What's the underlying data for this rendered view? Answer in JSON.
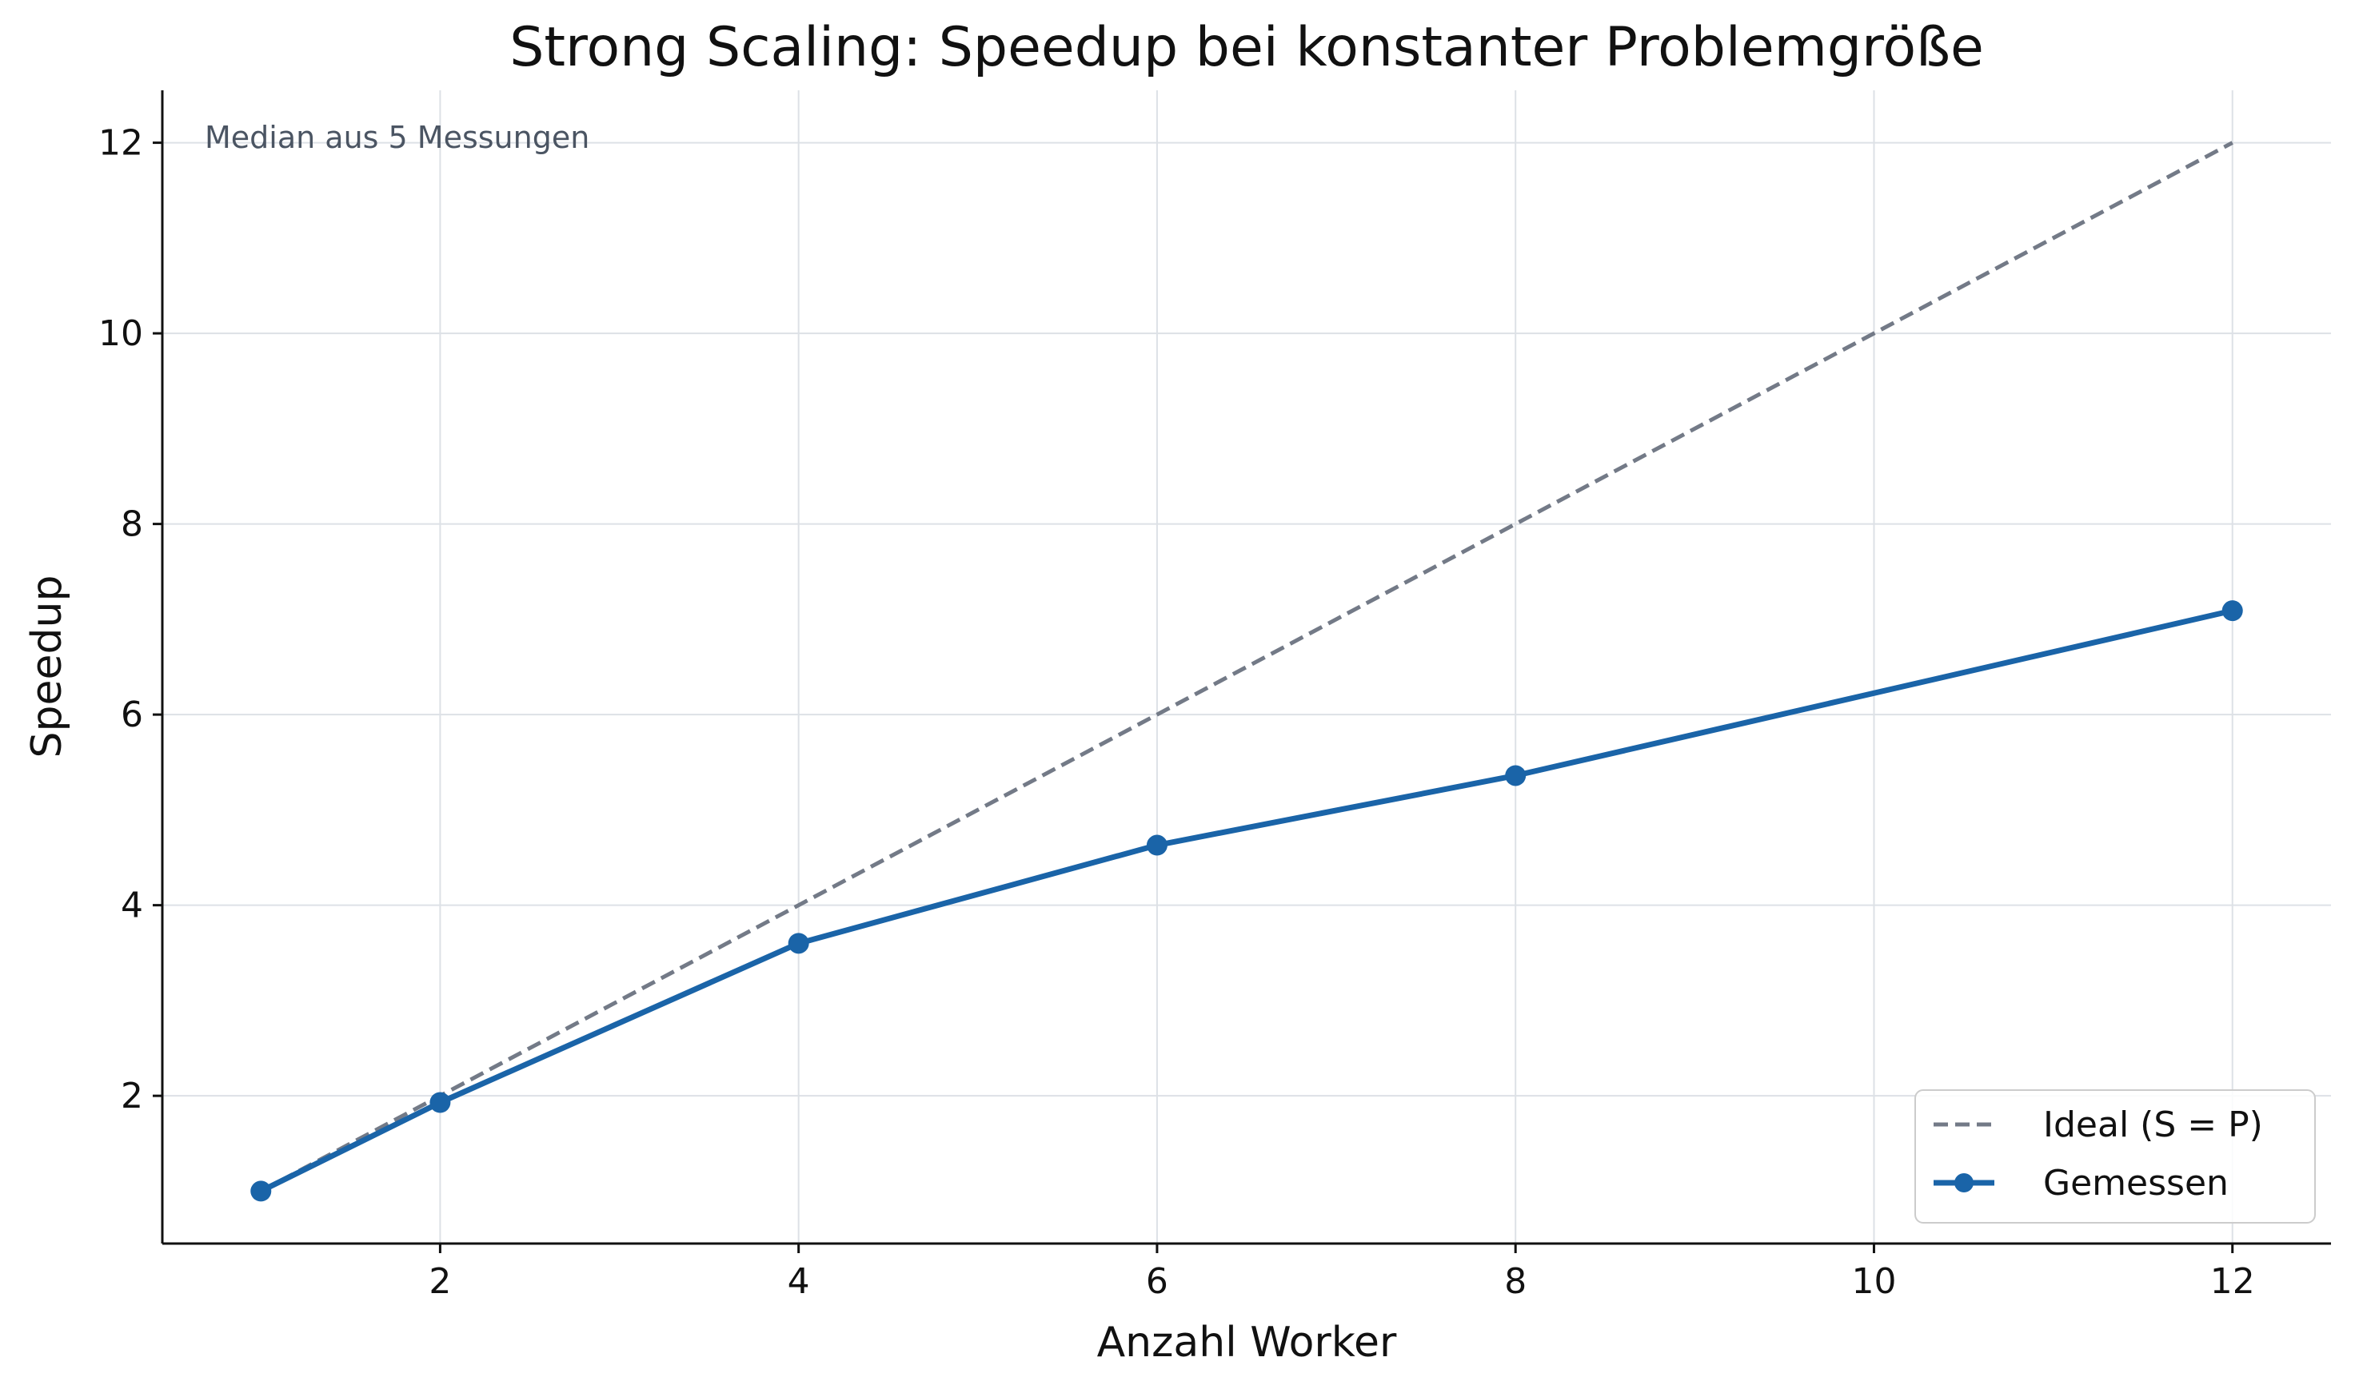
{
  "chart_data": {
    "type": "line",
    "title": "Strong Scaling: Speedup bei konstanter Problemgröße",
    "xlabel": "Anzahl Worker",
    "ylabel": "Speedup",
    "xlim": [
      0.45,
      12.55
    ],
    "ylim": [
      0.45,
      12.55
    ],
    "xticks": [
      2,
      4,
      6,
      8,
      10,
      12
    ],
    "yticks": [
      2,
      4,
      6,
      8,
      10,
      12
    ],
    "grid": true,
    "legend_position": "bottom-right",
    "annotation": "Median aus 5 Messungen",
    "series": [
      {
        "name": "Ideal (S = P)",
        "style": "dashed",
        "color": "#737a87",
        "x": [
          1,
          12
        ],
        "y": [
          1,
          12
        ]
      },
      {
        "name": "Gemessen",
        "style": "solid-marker",
        "color": "#1a64a8",
        "x": [
          1,
          2,
          4,
          6,
          8,
          12
        ],
        "y": [
          1.0,
          1.93,
          3.6,
          4.63,
          5.36,
          7.09
        ]
      }
    ]
  }
}
